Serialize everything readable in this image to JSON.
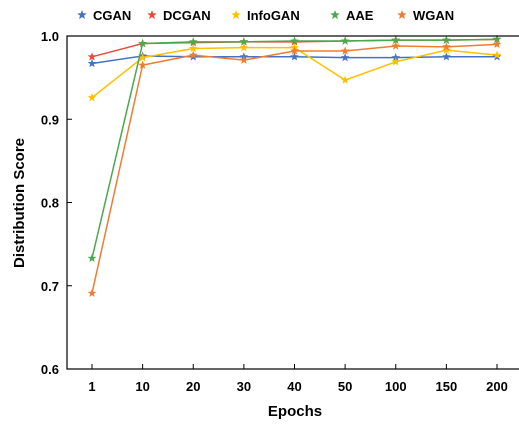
{
  "chart_data": {
    "type": "line",
    "xlabel": "Epochs",
    "ylabel": "Distribution Score",
    "categories": [
      "1",
      "10",
      "20",
      "30",
      "40",
      "50",
      "100",
      "150",
      "200"
    ],
    "ylim": [
      0.6,
      1.0
    ],
    "yticks": [
      "0.6",
      "0.7",
      "0.8",
      "0.9",
      "1.0"
    ],
    "grid": false,
    "legend_position": "top",
    "marker": "star",
    "series": [
      {
        "name": "CGAN",
        "color": "#4472C4",
        "values": [
          0.967,
          0.976,
          0.975,
          0.975,
          0.975,
          0.974,
          0.974,
          0.975,
          0.975
        ]
      },
      {
        "name": "DCGAN",
        "color": "#E74C3C",
        "values": [
          0.975,
          0.991,
          0.992,
          0.993,
          0.993,
          0.994,
          0.995,
          0.995,
          0.996
        ]
      },
      {
        "name": "InfoGAN",
        "color": "#FFC000",
        "values": [
          0.926,
          0.974,
          0.985,
          0.986,
          0.986,
          0.947,
          0.969,
          0.983,
          0.977
        ]
      },
      {
        "name": "AAE",
        "color": "#4AA84E",
        "values": [
          0.733,
          0.991,
          0.993,
          0.993,
          0.994,
          0.994,
          0.995,
          0.995,
          0.996
        ]
      },
      {
        "name": "WGAN",
        "color": "#ED7D31",
        "values": [
          0.691,
          0.965,
          0.977,
          0.971,
          0.982,
          0.982,
          0.988,
          0.987,
          0.99
        ]
      }
    ]
  }
}
